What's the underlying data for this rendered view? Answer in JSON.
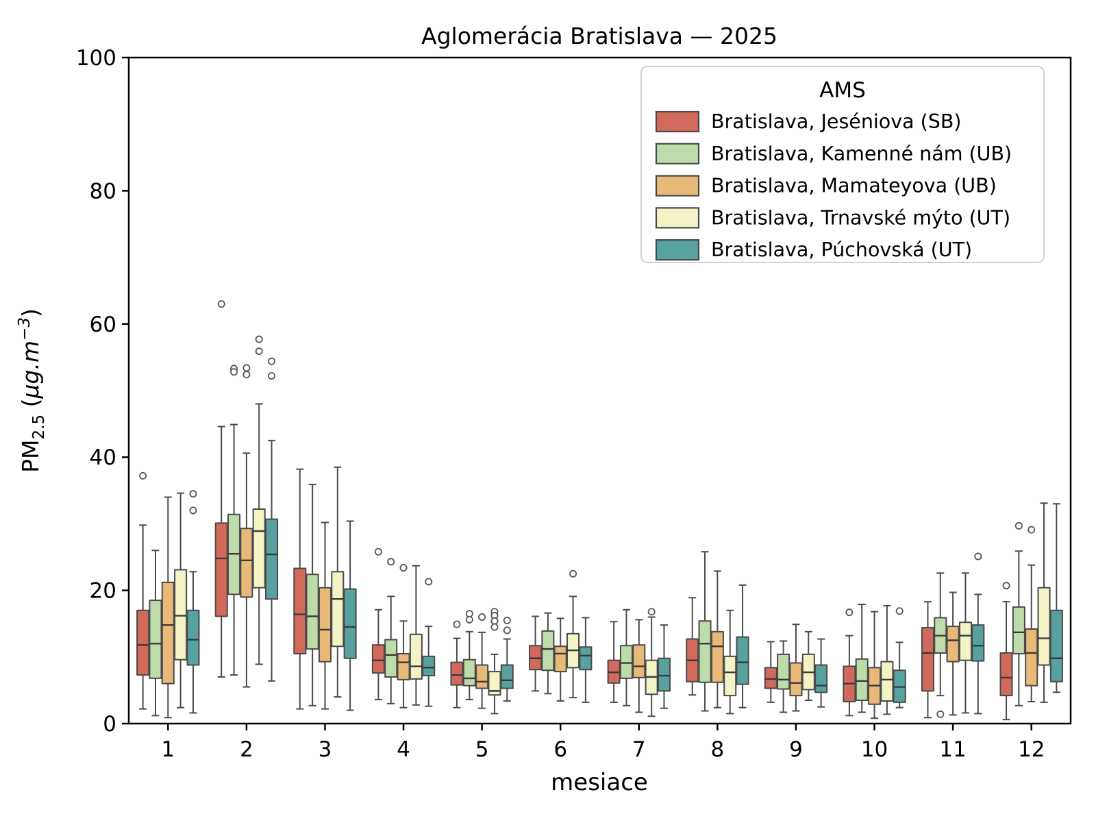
{
  "chart_data": {
    "type": "boxplot",
    "title": "Aglomerácia Bratislava —  2025",
    "xlabel": "mesiace",
    "ylabel": "PM₂.₅  (μg.m⁻³)",
    "ylabel_parts": {
      "base": "PM",
      "sub": "2.5",
      "open": "  (",
      "unit": "μg.m",
      "sup": "−3",
      "close": ")"
    },
    "ylim": [
      0,
      100
    ],
    "yticks": [
      0,
      20,
      40,
      60,
      80,
      100
    ],
    "categories": [
      "1",
      "2",
      "3",
      "4",
      "5",
      "6",
      "7",
      "8",
      "9",
      "10",
      "11",
      "12"
    ],
    "grid": false,
    "legend": {
      "title": "AMS",
      "position": "upper right"
    },
    "style": {
      "box_edge_color": "#4a4a4a",
      "median_color": "#3a3a3a",
      "whisker_color": "#4a4a4a",
      "flier_edge_color": "#555555",
      "axis_color": "#000000",
      "legend_border_color": "#cccccc",
      "background": "#ffffff"
    },
    "series": [
      {
        "name": "Bratislava, Jeséniova (SB)",
        "key": "jeseniova",
        "color": "#d26a5c",
        "data": [
          {
            "lo": 2.2,
            "q1": 7.3,
            "med": 11.8,
            "q3": 17.0,
            "hi": 29.8,
            "out": [
              37.2
            ]
          },
          {
            "lo": 7.0,
            "q1": 16.1,
            "med": 24.8,
            "q3": 30.1,
            "hi": 44.6,
            "out": [
              63.0
            ]
          },
          {
            "lo": 2.2,
            "q1": 10.5,
            "med": 16.4,
            "q3": 23.3,
            "hi": 38.2,
            "out": []
          },
          {
            "lo": 3.6,
            "q1": 7.6,
            "med": 9.5,
            "q3": 11.8,
            "hi": 17.1,
            "out": [
              25.8
            ]
          },
          {
            "lo": 2.4,
            "q1": 5.8,
            "med": 7.3,
            "q3": 9.2,
            "hi": 12.8,
            "out": [
              14.9
            ]
          },
          {
            "lo": 4.9,
            "q1": 8.1,
            "med": 9.8,
            "q3": 11.7,
            "hi": 16.1,
            "out": []
          },
          {
            "lo": 3.2,
            "q1": 6.1,
            "med": 7.7,
            "q3": 9.5,
            "hi": 15.3,
            "out": []
          },
          {
            "lo": 4.3,
            "q1": 6.3,
            "med": 9.5,
            "q3": 12.7,
            "hi": 18.9,
            "out": []
          },
          {
            "lo": 3.2,
            "q1": 5.3,
            "med": 6.7,
            "q3": 8.4,
            "hi": 12.3,
            "out": []
          },
          {
            "lo": 1.2,
            "q1": 3.3,
            "med": 6.0,
            "q3": 8.6,
            "hi": 13.2,
            "out": [
              16.7
            ]
          },
          {
            "lo": 0.9,
            "q1": 4.9,
            "med": 10.6,
            "q3": 14.4,
            "hi": 18.3,
            "out": []
          },
          {
            "lo": 0.6,
            "q1": 4.2,
            "med": 6.9,
            "q3": 10.6,
            "hi": 18.3,
            "out": [
              20.7
            ]
          }
        ]
      },
      {
        "name": "Bratislava, Kamenné nám (UB)",
        "key": "kamenne-nam",
        "color": "#bedca9",
        "data": [
          {
            "lo": 1.2,
            "q1": 6.8,
            "med": 12.0,
            "q3": 18.5,
            "hi": 26.0,
            "out": []
          },
          {
            "lo": 7.3,
            "q1": 19.4,
            "med": 25.5,
            "q3": 31.4,
            "hi": 44.9,
            "out": [
              53.3,
              52.8
            ]
          },
          {
            "lo": 2.7,
            "q1": 11.2,
            "med": 16.1,
            "q3": 22.4,
            "hi": 35.9,
            "out": []
          },
          {
            "lo": 3.0,
            "q1": 7.0,
            "med": 10.3,
            "q3": 12.6,
            "hi": 19.1,
            "out": [
              24.3
            ]
          },
          {
            "lo": 3.6,
            "q1": 5.7,
            "med": 6.8,
            "q3": 9.6,
            "hi": 13.8,
            "out": [
              16.5,
              15.6
            ]
          },
          {
            "lo": 4.5,
            "q1": 8.0,
            "med": 11.2,
            "q3": 13.9,
            "hi": 16.6,
            "out": []
          },
          {
            "lo": 2.7,
            "q1": 6.8,
            "med": 9.1,
            "q3": 11.7,
            "hi": 17.1,
            "out": []
          },
          {
            "lo": 1.9,
            "q1": 6.2,
            "med": 12.0,
            "q3": 15.4,
            "hi": 25.8,
            "out": []
          },
          {
            "lo": 1.7,
            "q1": 5.2,
            "med": 6.6,
            "q3": 10.4,
            "hi": 12.4,
            "out": []
          },
          {
            "lo": 1.7,
            "q1": 3.5,
            "med": 6.4,
            "q3": 9.7,
            "hi": 17.9,
            "out": []
          },
          {
            "lo": 4.2,
            "q1": 10.6,
            "med": 13.2,
            "q3": 15.9,
            "hi": 22.6,
            "out": [
              1.4
            ]
          },
          {
            "lo": 2.7,
            "q1": 10.5,
            "med": 13.7,
            "q3": 17.5,
            "hi": 25.9,
            "out": [
              29.7
            ]
          }
        ]
      },
      {
        "name": "Bratislava, Mamateyova (UB)",
        "key": "mamateyova",
        "color": "#e9b97a",
        "data": [
          {
            "lo": 0.9,
            "q1": 6.0,
            "med": 14.8,
            "q3": 21.2,
            "hi": 34.0,
            "out": []
          },
          {
            "lo": 5.5,
            "q1": 19.0,
            "med": 24.5,
            "q3": 29.3,
            "hi": 40.6,
            "out": [
              53.4,
              52.4
            ]
          },
          {
            "lo": 2.2,
            "q1": 9.3,
            "med": 14.1,
            "q3": 20.4,
            "hi": 30.2,
            "out": []
          },
          {
            "lo": 2.4,
            "q1": 6.6,
            "med": 9.2,
            "q3": 10.5,
            "hi": 15.4,
            "out": [
              23.4
            ]
          },
          {
            "lo": 2.3,
            "q1": 5.3,
            "med": 6.3,
            "q3": 8.8,
            "hi": 13.7,
            "out": [
              16.0
            ]
          },
          {
            "lo": 3.4,
            "q1": 7.8,
            "med": 10.5,
            "q3": 11.6,
            "hi": 15.8,
            "out": []
          },
          {
            "lo": 1.7,
            "q1": 6.9,
            "med": 8.6,
            "q3": 11.8,
            "hi": 15.6,
            "out": []
          },
          {
            "lo": 2.4,
            "q1": 6.2,
            "med": 11.6,
            "q3": 13.8,
            "hi": 22.9,
            "out": []
          },
          {
            "lo": 1.9,
            "q1": 4.2,
            "med": 6.1,
            "q3": 9.1,
            "hi": 14.9,
            "out": []
          },
          {
            "lo": 0.8,
            "q1": 2.9,
            "med": 5.7,
            "q3": 8.4,
            "hi": 16.8,
            "out": []
          },
          {
            "lo": 1.3,
            "q1": 9.3,
            "med": 12.5,
            "q3": 14.6,
            "hi": 19.7,
            "out": []
          },
          {
            "lo": 3.3,
            "q1": 5.7,
            "med": 10.6,
            "q3": 14.2,
            "hi": 23.8,
            "out": [
              29.1
            ]
          }
        ]
      },
      {
        "name": "Bratislava, Trnavské mýto (UT)",
        "key": "trnavske-myto",
        "color": "#f3f3c6",
        "data": [
          {
            "lo": 2.4,
            "q1": 9.6,
            "med": 16.2,
            "q3": 23.1,
            "hi": 34.6,
            "out": []
          },
          {
            "lo": 8.9,
            "q1": 20.4,
            "med": 28.9,
            "q3": 32.2,
            "hi": 48.0,
            "out": [
              57.7,
              55.9
            ]
          },
          {
            "lo": 4.0,
            "q1": 11.6,
            "med": 18.7,
            "q3": 22.8,
            "hi": 38.5,
            "out": []
          },
          {
            "lo": 2.8,
            "q1": 6.7,
            "med": 8.6,
            "q3": 13.4,
            "hi": 23.7,
            "out": []
          },
          {
            "lo": 1.5,
            "q1": 4.3,
            "med": 4.9,
            "q3": 7.8,
            "hi": 10.4,
            "out": [
              16.8,
              16.2,
              15.4,
              14.5
            ]
          },
          {
            "lo": 3.9,
            "q1": 8.4,
            "med": 11.0,
            "q3": 13.5,
            "hi": 19.1,
            "out": [
              22.5
            ]
          },
          {
            "lo": 1.1,
            "q1": 4.4,
            "med": 7.0,
            "q3": 9.5,
            "hi": 16.0,
            "out": [
              16.8
            ]
          },
          {
            "lo": 1.5,
            "q1": 4.2,
            "med": 7.7,
            "q3": 10.1,
            "hi": 17.0,
            "out": []
          },
          {
            "lo": 3.5,
            "q1": 5.1,
            "med": 7.7,
            "q3": 10.4,
            "hi": 13.8,
            "out": []
          },
          {
            "lo": 1.4,
            "q1": 3.4,
            "med": 6.6,
            "q3": 9.3,
            "hi": 17.7,
            "out": []
          },
          {
            "lo": 1.6,
            "q1": 9.5,
            "med": 13.2,
            "q3": 15.2,
            "hi": 22.6,
            "out": []
          },
          {
            "lo": 3.2,
            "q1": 8.8,
            "med": 12.8,
            "q3": 20.4,
            "hi": 33.1,
            "out": []
          }
        ]
      },
      {
        "name": "Bratislava, Púchovská (UT)",
        "key": "puchovska",
        "color": "#57a19e",
        "data": [
          {
            "lo": 1.6,
            "q1": 8.8,
            "med": 12.6,
            "q3": 17.0,
            "hi": 22.8,
            "out": [
              34.5,
              32.0
            ]
          },
          {
            "lo": 6.4,
            "q1": 18.7,
            "med": 25.4,
            "q3": 30.7,
            "hi": 42.5,
            "out": [
              54.4,
              52.2
            ]
          },
          {
            "lo": 2.0,
            "q1": 9.8,
            "med": 14.5,
            "q3": 20.2,
            "hi": 30.4,
            "out": []
          },
          {
            "lo": 2.6,
            "q1": 7.2,
            "med": 8.4,
            "q3": 10.1,
            "hi": 14.6,
            "out": [
              21.3
            ]
          },
          {
            "lo": 3.4,
            "q1": 5.3,
            "med": 6.5,
            "q3": 8.8,
            "hi": 12.7,
            "out": [
              15.5,
              14.0
            ]
          },
          {
            "lo": 3.2,
            "q1": 8.1,
            "med": 10.2,
            "q3": 11.5,
            "hi": 15.9,
            "out": []
          },
          {
            "lo": 2.3,
            "q1": 4.9,
            "med": 7.2,
            "q3": 9.8,
            "hi": 14.8,
            "out": []
          },
          {
            "lo": 2.4,
            "q1": 5.9,
            "med": 9.2,
            "q3": 13.0,
            "hi": 20.8,
            "out": []
          },
          {
            "lo": 2.5,
            "q1": 4.7,
            "med": 5.7,
            "q3": 8.8,
            "hi": 12.7,
            "out": []
          },
          {
            "lo": 2.4,
            "q1": 3.2,
            "med": 5.5,
            "q3": 8.0,
            "hi": 12.2,
            "out": [
              16.9
            ]
          },
          {
            "lo": 1.5,
            "q1": 9.4,
            "med": 11.7,
            "q3": 14.8,
            "hi": 19.4,
            "out": [
              25.1
            ]
          },
          {
            "lo": 4.7,
            "q1": 6.3,
            "med": 9.8,
            "q3": 17.0,
            "hi": 33.0,
            "out": []
          }
        ]
      }
    ]
  }
}
